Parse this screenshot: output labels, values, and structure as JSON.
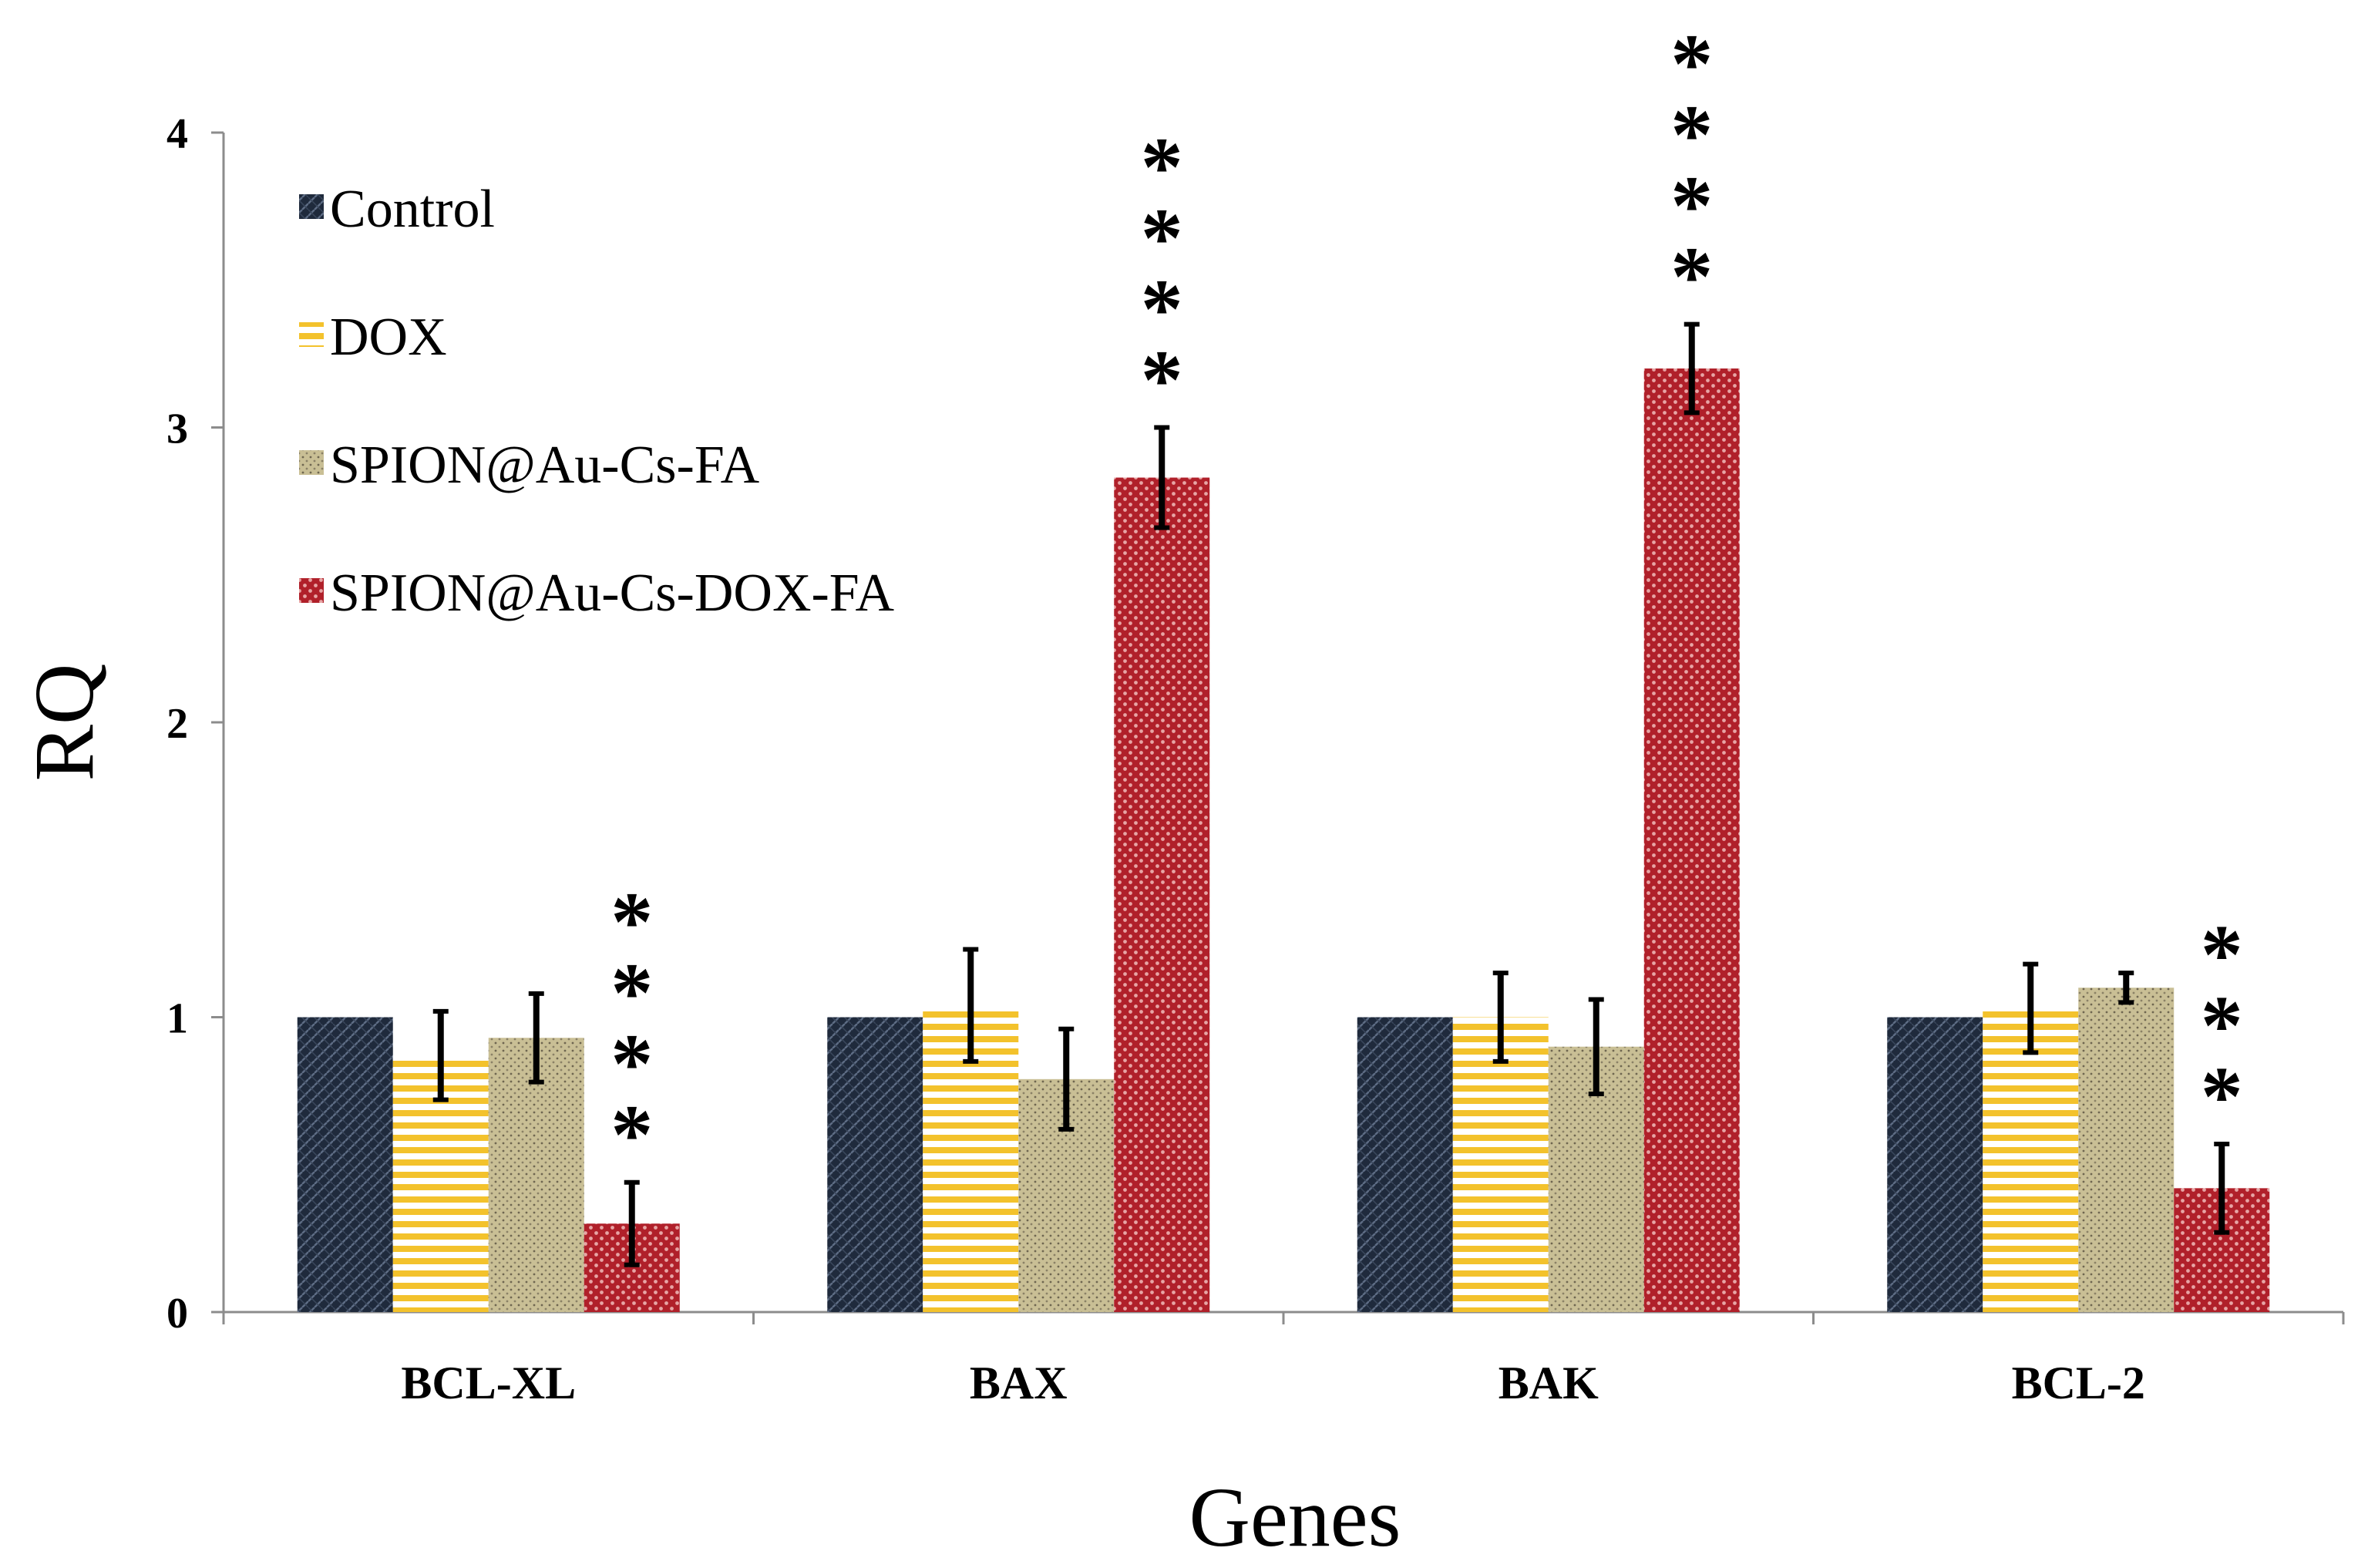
{
  "chart_data": {
    "type": "bar",
    "title": "",
    "xlabel": "Genes",
    "ylabel": "RQ",
    "ylim": [
      0,
      4
    ],
    "yticks": [
      0,
      1,
      2,
      3,
      4
    ],
    "categories": [
      "BCL-XL",
      "BAX",
      "BAK",
      "BCL-2"
    ],
    "legend_position": "top-left",
    "series": [
      {
        "name": "Control",
        "color": "#1f2a3c",
        "pattern": "weave-dark",
        "values": [
          1.0,
          1.0,
          1.0,
          1.0
        ],
        "errors": [
          0,
          0,
          0,
          0
        ]
      },
      {
        "name": "DOX",
        "color": "#f3c22c",
        "pattern": "horizontal-stripes",
        "values": [
          0.87,
          1.04,
          1.0,
          1.03
        ],
        "errors": [
          0.15,
          0.19,
          0.15,
          0.15
        ]
      },
      {
        "name": "SPION@Au-Cs-FA",
        "color": "#c9bf95",
        "pattern": "dots",
        "values": [
          0.93,
          0.79,
          0.9,
          1.1
        ],
        "errors": [
          0.15,
          0.17,
          0.16,
          0.05
        ]
      },
      {
        "name": "SPION@Au-Cs-DOX-FA",
        "color": "#b0202a",
        "pattern": "checker",
        "values": [
          0.3,
          2.83,
          3.2,
          0.42
        ],
        "errors": [
          0.14,
          0.17,
          0.15,
          0.15
        ]
      }
    ],
    "annotations": [
      {
        "category": "BCL-XL",
        "series": "SPION@Au-Cs-DOX-FA",
        "text": "****"
      },
      {
        "category": "BAX",
        "series": "SPION@Au-Cs-DOX-FA",
        "text": "****"
      },
      {
        "category": "BAK",
        "series": "SPION@Au-Cs-DOX-FA",
        "text": "****"
      },
      {
        "category": "BCL-2",
        "series": "SPION@Au-Cs-DOX-FA",
        "text": "***"
      }
    ]
  }
}
